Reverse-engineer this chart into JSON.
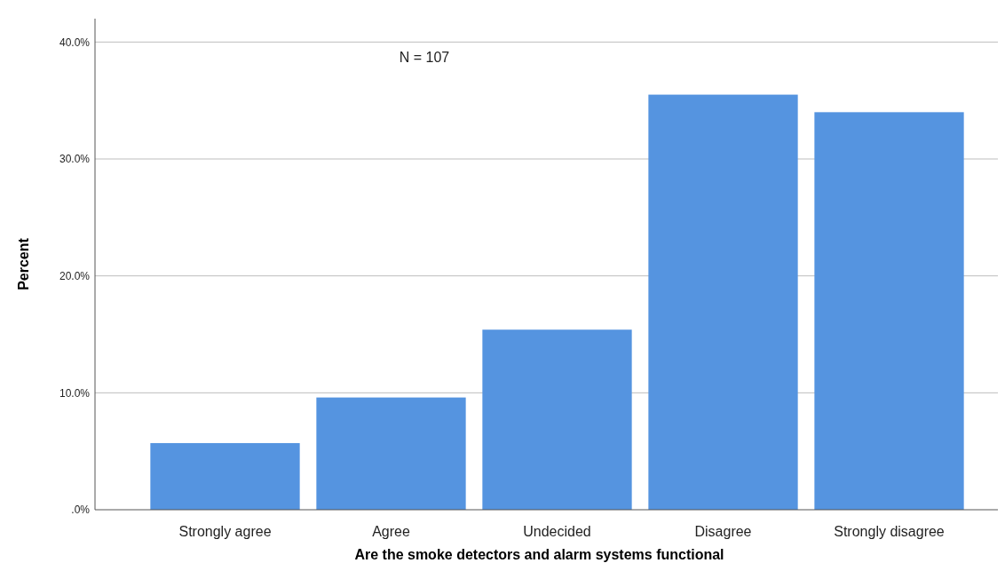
{
  "chart_data": {
    "type": "bar",
    "xlabel": "Are the smoke detectors and alarm systems functional",
    "ylabel": "Percent",
    "categories": [
      "Strongly agree",
      "Agree",
      "Undecided",
      "Disagree",
      "Strongly disagree"
    ],
    "values": [
      5.7,
      9.6,
      15.4,
      35.5,
      34.0
    ],
    "color": "#5594e0",
    "ylim": [
      0,
      42
    ],
    "yticks": [
      {
        "value": 0,
        "label": ".0%"
      },
      {
        "value": 10,
        "label": "10.0%"
      },
      {
        "value": 20,
        "label": "20.0%"
      },
      {
        "value": 30,
        "label": "30.0%"
      },
      {
        "value": 40,
        "label": "40.0%"
      }
    ],
    "grid": "y",
    "annotations": [
      "N = 107"
    ]
  }
}
